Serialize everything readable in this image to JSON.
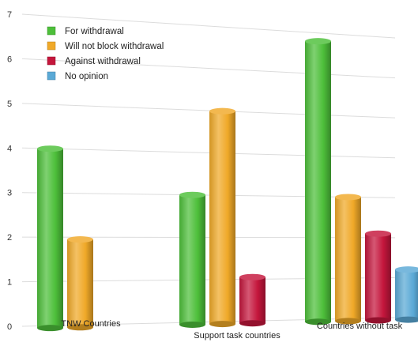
{
  "chart_data": {
    "type": "bar",
    "categories": [
      "TNW Countries",
      "Support task countries",
      "Countries without task"
    ],
    "series": [
      {
        "name": "For withdrawal",
        "color": "#4dbf3a",
        "values": [
          4,
          3,
          6.8
        ]
      },
      {
        "name": "Will not block withdrawal",
        "color": "#f0a928",
        "values": [
          1.95,
          5,
          3
        ]
      },
      {
        "name": "Against withdrawal",
        "color": "#c4163c",
        "values": [
          0,
          1.05,
          2.1
        ]
      },
      {
        "name": "No opinion",
        "color": "#5aa9d6",
        "values": [
          0,
          0,
          1.2
        ]
      }
    ],
    "y_ticks": [
      "0",
      "1",
      "2",
      "3",
      "4",
      "5",
      "6",
      "7"
    ],
    "ylim": [
      0,
      7
    ],
    "grid": true,
    "legend_position": "top-left",
    "title": "",
    "xlabel": "",
    "ylabel": ""
  }
}
